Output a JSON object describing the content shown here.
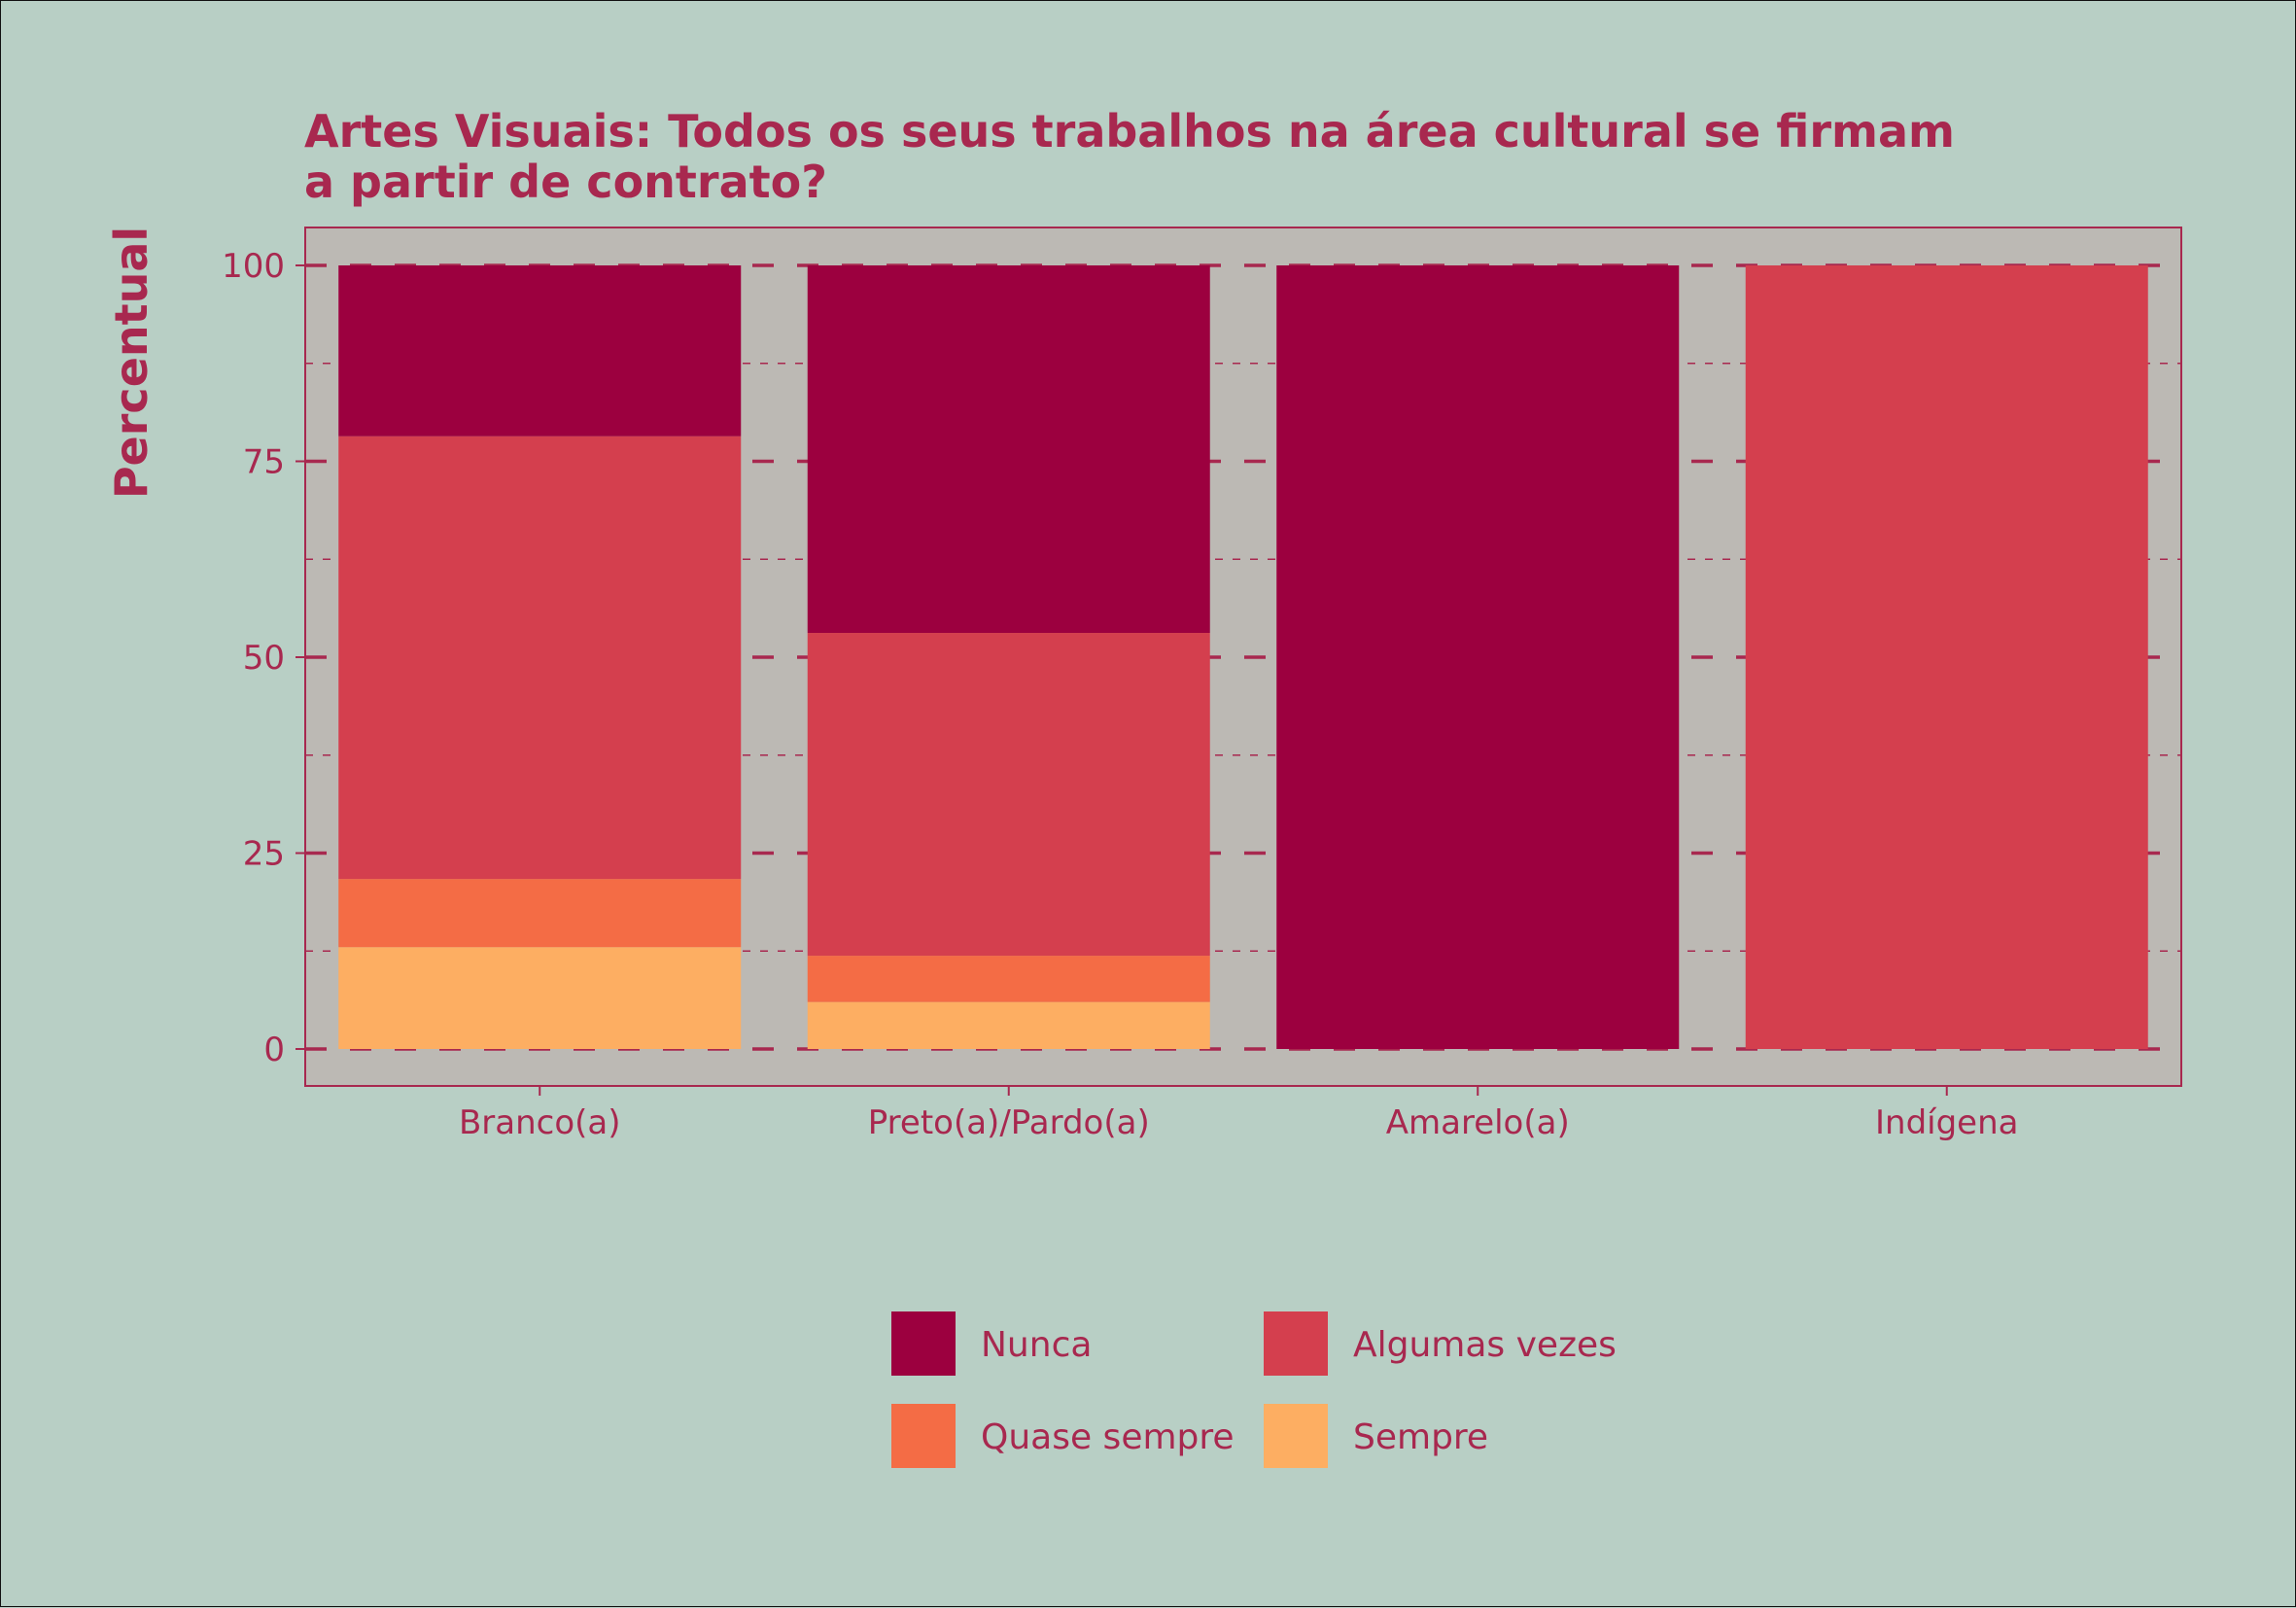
{
  "colors": {
    "text": "#a8284f",
    "panel_bg": "#bcb9b4",
    "page_bg": "#b8cfc5",
    "Nunca": "#9c003f",
    "Algumas vezes": "#d43f4e",
    "Quase sempre": "#f46c45",
    "Sempre": "#fdae62"
  },
  "chart_data": {
    "type": "bar",
    "stacked": true,
    "title_lines": [
      "Artes Visuais: Todos os seus trabalhos na área cultural se firmam",
      "a partir de contrato?"
    ],
    "xlabel": "",
    "ylabel": "Percentual",
    "ylim": [
      0,
      100
    ],
    "yticks": [
      "0",
      "25",
      "50",
      "75",
      "100"
    ],
    "categories": [
      "Branco(a)",
      "Preto(a)/Pardo(a)",
      "Amarelo(a)",
      "Indígena"
    ],
    "series": [
      {
        "name": "Sempre",
        "values": [
          13,
          6,
          0,
          0
        ]
      },
      {
        "name": "Quase sempre",
        "values": [
          8.7,
          5.9,
          0,
          0
        ]
      },
      {
        "name": "Algumas vezes",
        "values": [
          56.5,
          41.2,
          0,
          100
        ]
      },
      {
        "name": "Nunca",
        "values": [
          21.8,
          46.9,
          100,
          0
        ]
      }
    ],
    "legend": {
      "position": "bottom",
      "entries": [
        "Nunca",
        "Algumas vezes",
        "Quase sempre",
        "Sempre"
      ]
    },
    "grid": true
  }
}
